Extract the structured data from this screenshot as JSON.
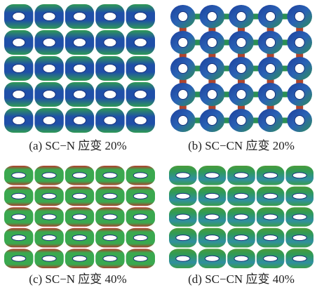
{
  "figure": {
    "panels": [
      {
        "caption": "(a) SC−N 应变 20%"
      },
      {
        "caption": "(b) SC−CN 应变 20%"
      },
      {
        "caption": "(c) SC−N 应变 40%"
      },
      {
        "caption": "(d) SC−CN 应变 40%"
      }
    ]
  }
}
